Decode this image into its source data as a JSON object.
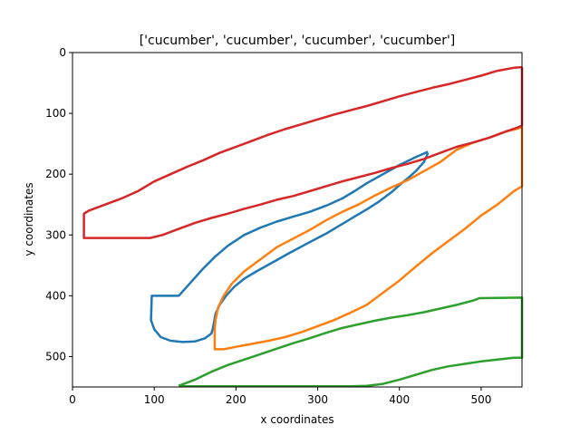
{
  "chart_data": {
    "type": "line",
    "title": "['cucumber', 'cucumber', 'cucumber', 'cucumber']",
    "xlabel": "x coordinates",
    "ylabel": "y coordinates",
    "xlim": [
      0,
      550
    ],
    "ylim": [
      550,
      0
    ],
    "y_inverted": true,
    "grid": false,
    "legend": false,
    "x_ticks": [
      0,
      100,
      200,
      300,
      400,
      500
    ],
    "y_ticks": [
      0,
      100,
      200,
      300,
      400,
      500
    ],
    "series": [
      {
        "color": "#1f77b4",
        "points": [
          [
            435,
            163
          ],
          [
            420,
            172
          ],
          [
            400,
            185
          ],
          [
            380,
            200
          ],
          [
            360,
            215
          ],
          [
            345,
            228
          ],
          [
            330,
            240
          ],
          [
            310,
            252
          ],
          [
            290,
            262
          ],
          [
            270,
            270
          ],
          [
            250,
            278
          ],
          [
            230,
            288
          ],
          [
            210,
            300
          ],
          [
            190,
            318
          ],
          [
            175,
            335
          ],
          [
            160,
            355
          ],
          [
            150,
            370
          ],
          [
            140,
            385
          ],
          [
            130,
            400
          ],
          [
            97,
            400
          ],
          [
            96,
            440
          ],
          [
            100,
            455
          ],
          [
            108,
            468
          ],
          [
            120,
            474
          ],
          [
            135,
            476
          ],
          [
            150,
            475
          ],
          [
            162,
            470
          ],
          [
            170,
            462
          ],
          [
            172,
            452
          ],
          [
            175,
            430
          ],
          [
            180,
            415
          ],
          [
            188,
            400
          ],
          [
            198,
            385
          ],
          [
            210,
            372
          ],
          [
            225,
            360
          ],
          [
            245,
            345
          ],
          [
            265,
            330
          ],
          [
            290,
            312
          ],
          [
            310,
            298
          ],
          [
            330,
            282
          ],
          [
            345,
            270
          ],
          [
            360,
            258
          ],
          [
            375,
            245
          ],
          [
            390,
            230
          ],
          [
            400,
            218
          ],
          [
            410,
            207
          ],
          [
            420,
            195
          ],
          [
            430,
            180
          ],
          [
            435,
            165
          ]
        ]
      },
      {
        "color": "#ff7f0e",
        "points": [
          [
            550,
            122
          ],
          [
            545,
            125
          ],
          [
            530,
            130
          ],
          [
            510,
            140
          ],
          [
            490,
            148
          ],
          [
            470,
            160
          ],
          [
            450,
            180
          ],
          [
            430,
            195
          ],
          [
            410,
            210
          ],
          [
            390,
            222
          ],
          [
            370,
            235
          ],
          [
            350,
            250
          ],
          [
            330,
            262
          ],
          [
            310,
            276
          ],
          [
            290,
            292
          ],
          [
            270,
            306
          ],
          [
            250,
            320
          ],
          [
            230,
            340
          ],
          [
            210,
            360
          ],
          [
            195,
            380
          ],
          [
            185,
            400
          ],
          [
            178,
            420
          ],
          [
            175,
            440
          ],
          [
            174,
            456
          ],
          [
            174,
            472
          ],
          [
            174,
            488
          ],
          [
            185,
            488
          ],
          [
            200,
            484
          ],
          [
            220,
            479
          ],
          [
            240,
            474
          ],
          [
            260,
            468
          ],
          [
            280,
            460
          ],
          [
            300,
            450
          ],
          [
            320,
            440
          ],
          [
            340,
            428
          ],
          [
            360,
            415
          ],
          [
            380,
            395
          ],
          [
            400,
            375
          ],
          [
            420,
            352
          ],
          [
            440,
            330
          ],
          [
            460,
            310
          ],
          [
            480,
            290
          ],
          [
            500,
            268
          ],
          [
            520,
            250
          ],
          [
            540,
            228
          ],
          [
            550,
            220
          ],
          [
            550,
            122
          ]
        ]
      },
      {
        "color": "#2ca02c",
        "points": [
          [
            130,
            548
          ],
          [
            150,
            538
          ],
          [
            170,
            525
          ],
          [
            190,
            514
          ],
          [
            210,
            505
          ],
          [
            230,
            496
          ],
          [
            250,
            487
          ],
          [
            270,
            478
          ],
          [
            290,
            470
          ],
          [
            310,
            461
          ],
          [
            330,
            453
          ],
          [
            350,
            447
          ],
          [
            370,
            441
          ],
          [
            390,
            436
          ],
          [
            410,
            432
          ],
          [
            430,
            427
          ],
          [
            450,
            421
          ],
          [
            470,
            415
          ],
          [
            490,
            408
          ],
          [
            498,
            404
          ],
          [
            498,
            404
          ],
          [
            550,
            403
          ],
          [
            550,
            502
          ],
          [
            540,
            502
          ],
          [
            520,
            505
          ],
          [
            500,
            508
          ],
          [
            480,
            512
          ],
          [
            460,
            516
          ],
          [
            440,
            522
          ],
          [
            420,
            530
          ],
          [
            400,
            538
          ],
          [
            380,
            545
          ],
          [
            360,
            548
          ],
          [
            340,
            549
          ],
          [
            300,
            549
          ],
          [
            250,
            549
          ],
          [
            200,
            549
          ],
          [
            150,
            549
          ],
          [
            130,
            549
          ]
        ]
      },
      {
        "color": "#d62728",
        "points": [
          [
            550,
            24
          ],
          [
            540,
            25
          ],
          [
            520,
            30
          ],
          [
            500,
            38
          ],
          [
            480,
            45
          ],
          [
            460,
            52
          ],
          [
            440,
            58
          ],
          [
            420,
            65
          ],
          [
            400,
            72
          ],
          [
            380,
            80
          ],
          [
            360,
            88
          ],
          [
            340,
            95
          ],
          [
            320,
            102
          ],
          [
            300,
            110
          ],
          [
            280,
            118
          ],
          [
            260,
            126
          ],
          [
            240,
            135
          ],
          [
            220,
            145
          ],
          [
            200,
            155
          ],
          [
            180,
            165
          ],
          [
            160,
            177
          ],
          [
            140,
            188
          ],
          [
            120,
            200
          ],
          [
            100,
            212
          ],
          [
            80,
            228
          ],
          [
            60,
            240
          ],
          [
            40,
            250
          ],
          [
            20,
            260
          ],
          [
            14,
            265
          ],
          [
            14,
            305
          ],
          [
            95,
            305
          ],
          [
            110,
            300
          ],
          [
            130,
            290
          ],
          [
            150,
            280
          ],
          [
            170,
            272
          ],
          [
            190,
            265
          ],
          [
            210,
            257
          ],
          [
            230,
            250
          ],
          [
            250,
            242
          ],
          [
            270,
            236
          ],
          [
            290,
            228
          ],
          [
            310,
            220
          ],
          [
            330,
            212
          ],
          [
            350,
            205
          ],
          [
            370,
            198
          ],
          [
            390,
            190
          ],
          [
            410,
            183
          ],
          [
            430,
            175
          ],
          [
            450,
            165
          ],
          [
            470,
            155
          ],
          [
            490,
            148
          ],
          [
            510,
            140
          ],
          [
            530,
            130
          ],
          [
            545,
            123
          ],
          [
            550,
            120
          ],
          [
            550,
            24
          ]
        ]
      }
    ]
  }
}
